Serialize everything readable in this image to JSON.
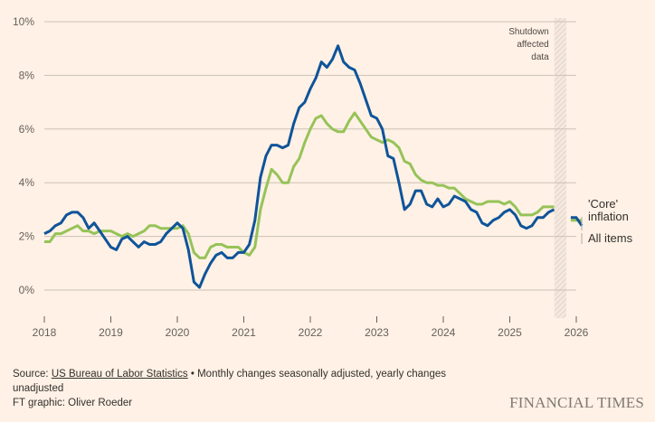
{
  "chart_data": {
    "type": "line",
    "title": "",
    "xlabel": "",
    "ylabel": "",
    "ylim": [
      0,
      10
    ],
    "xlim": [
      2018,
      2026
    ],
    "yticks": [
      0,
      2,
      4,
      6,
      8,
      10
    ],
    "ytick_labels": [
      "0%",
      "2%",
      "4%",
      "6%",
      "8%",
      "10%"
    ],
    "xticks": [
      2018,
      2019,
      2020,
      2021,
      2022,
      2023,
      2024,
      2025,
      2026
    ],
    "xtick_labels": [
      "2018",
      "2019",
      "2020",
      "2021",
      "2022",
      "2023",
      "2024",
      "2025",
      "2026"
    ],
    "grid": true,
    "colors": {
      "all_items": "#0f5499",
      "core": "#96c358",
      "grid": "#ccc1b7",
      "shutdown": "#e9dcd2"
    },
    "shutdown_band": {
      "from": 2025.67,
      "to": 2025.85,
      "label_lines": [
        "Shutdown",
        "affected",
        "data"
      ]
    },
    "series": [
      {
        "name": "All items",
        "key": "all_items",
        "start": 2018.0,
        "step_months": 1,
        "values": [
          2.1,
          2.2,
          2.4,
          2.5,
          2.8,
          2.9,
          2.9,
          2.7,
          2.3,
          2.5,
          2.2,
          1.9,
          1.6,
          1.5,
          1.9,
          2.0,
          1.8,
          1.6,
          1.8,
          1.7,
          1.7,
          1.8,
          2.1,
          2.3,
          2.5,
          2.3,
          1.5,
          0.3,
          0.1,
          0.6,
          1.0,
          1.3,
          1.4,
          1.2,
          1.2,
          1.4,
          1.4,
          1.7,
          2.6,
          4.2,
          5.0,
          5.4,
          5.4,
          5.3,
          5.4,
          6.2,
          6.8,
          7.0,
          7.5,
          7.9,
          8.5,
          8.3,
          8.6,
          9.1,
          8.5,
          8.3,
          8.2,
          7.7,
          7.1,
          6.5,
          6.4,
          6.0,
          5.0,
          4.9,
          4.0,
          3.0,
          3.2,
          3.7,
          3.7,
          3.2,
          3.1,
          3.4,
          3.1,
          3.2,
          3.5,
          3.4,
          3.3,
          3.0,
          2.9,
          2.5,
          2.4,
          2.6,
          2.7,
          2.9,
          3.0,
          2.8,
          2.4,
          2.3,
          2.4,
          2.7,
          2.7,
          2.9,
          3.0
        ],
        "after_gap": {
          "start": 2025.917,
          "values": [
            2.7,
            2.7,
            2.4
          ]
        }
      },
      {
        "name": "'Core' inflation",
        "key": "core",
        "start": 2018.0,
        "step_months": 1,
        "values": [
          1.8,
          1.8,
          2.1,
          2.1,
          2.2,
          2.3,
          2.4,
          2.2,
          2.2,
          2.1,
          2.2,
          2.2,
          2.2,
          2.1,
          2.0,
          2.1,
          2.0,
          2.1,
          2.2,
          2.4,
          2.4,
          2.3,
          2.3,
          2.3,
          2.3,
          2.4,
          2.1,
          1.4,
          1.2,
          1.2,
          1.6,
          1.7,
          1.7,
          1.6,
          1.6,
          1.6,
          1.4,
          1.3,
          1.6,
          3.0,
          3.8,
          4.5,
          4.3,
          4.0,
          4.0,
          4.6,
          4.9,
          5.5,
          6.0,
          6.4,
          6.5,
          6.2,
          6.0,
          5.9,
          5.9,
          6.3,
          6.6,
          6.3,
          6.0,
          5.7,
          5.6,
          5.5,
          5.6,
          5.5,
          5.3,
          4.8,
          4.7,
          4.3,
          4.1,
          4.0,
          4.0,
          3.9,
          3.9,
          3.8,
          3.8,
          3.6,
          3.4,
          3.3,
          3.2,
          3.2,
          3.3,
          3.3,
          3.3,
          3.2,
          3.3,
          3.1,
          2.8,
          2.8,
          2.8,
          2.9,
          3.1,
          3.1,
          3.1
        ],
        "after_gap": {
          "start": 2025.917,
          "values": [
            2.6,
            2.6,
            2.6
          ]
        }
      }
    ],
    "legend": [
      {
        "key": "core",
        "label_lines": [
          "'Core'",
          "inflation"
        ]
      },
      {
        "key": "all_items",
        "label_lines": [
          "All items"
        ]
      }
    ]
  },
  "footer": {
    "source_prefix": "Source: ",
    "source_link": "US Bureau of Labor Statistics",
    "source_rest": " • Monthly changes seasonally adjusted, yearly changes unadjusted",
    "credit": "FT graphic: Oliver Roeder",
    "brand": "FINANCIAL TIMES"
  }
}
